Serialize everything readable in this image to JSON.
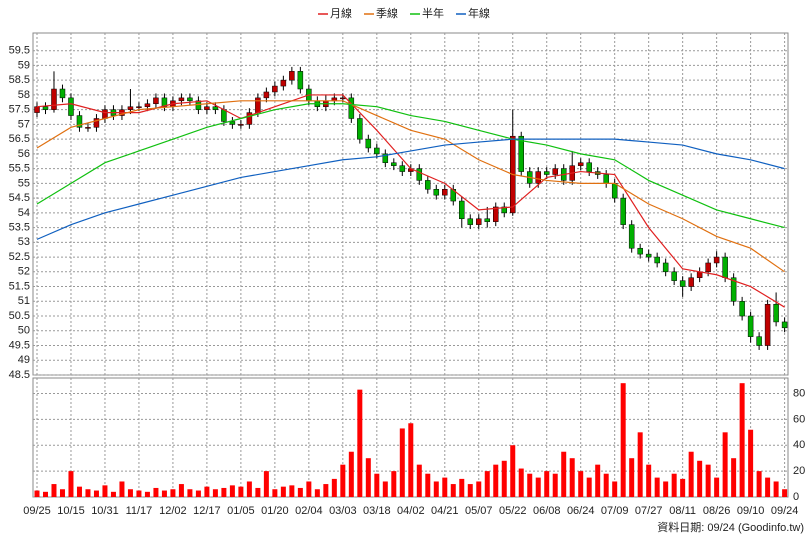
{
  "chart_data": {
    "type": "candlestick",
    "legend": [
      "月線",
      "季線",
      "半年",
      "年線"
    ],
    "footer": "資料日期: 09/24 (Goodinfo.tw)",
    "up_color": "#c00000",
    "down_color": "#00b000",
    "volume_color": "#ff0000",
    "xlim": [
      -0.47,
      88.4
    ],
    "xticks": [
      {
        "value": 0,
        "label": "09/25"
      },
      {
        "value": 4,
        "label": "10/15"
      },
      {
        "value": 8,
        "label": "10/31"
      },
      {
        "value": 12,
        "label": "11/17"
      },
      {
        "value": 16,
        "label": "12/02"
      },
      {
        "value": 20,
        "label": "12/17"
      },
      {
        "value": 24,
        "label": "01/05"
      },
      {
        "value": 28,
        "label": "01/20"
      },
      {
        "value": 32,
        "label": "02/04"
      },
      {
        "value": 36,
        "label": "03/03"
      },
      {
        "value": 40,
        "label": "03/18"
      },
      {
        "value": 44,
        "label": "04/02"
      },
      {
        "value": 48,
        "label": "04/21"
      },
      {
        "value": 52,
        "label": "05/07"
      },
      {
        "value": 56,
        "label": "05/22"
      },
      {
        "value": 60,
        "label": "06/08"
      },
      {
        "value": 64,
        "label": "06/24"
      },
      {
        "value": 68,
        "label": "07/09"
      },
      {
        "value": 72,
        "label": "07/27"
      },
      {
        "value": 76,
        "label": "08/11"
      },
      {
        "value": 80,
        "label": "08/26"
      },
      {
        "value": 84,
        "label": "09/10"
      },
      {
        "value": 88,
        "label": "09/24"
      }
    ],
    "ylim": [
      48.5,
      60.1
    ],
    "yticks": [
      48.5,
      49,
      49.5,
      50,
      50.5,
      51,
      51.5,
      52,
      52.5,
      53,
      53.5,
      54,
      54.5,
      55,
      55.5,
      56,
      56.5,
      57,
      57.5,
      58,
      58.5,
      59,
      59.5
    ],
    "y2lim": [
      0,
      92
    ],
    "y2ticks": [
      0,
      20,
      40,
      60,
      80
    ],
    "grid": true,
    "open": [
      57.4,
      57.6,
      57.5,
      58.2,
      57.9,
      57.3,
      56.9,
      56.9,
      57.2,
      57.5,
      57.3,
      57.5,
      57.6,
      57.6,
      57.7,
      57.9,
      57.6,
      57.8,
      57.9,
      57.8,
      57.5,
      57.6,
      57.5,
      57.1,
      57.0,
      57.0,
      57.4,
      57.9,
      58.1,
      58.3,
      58.5,
      58.8,
      58.2,
      57.8,
      57.6,
      57.8,
      57.9,
      57.9,
      57.2,
      56.5,
      56.2,
      56.0,
      55.7,
      55.6,
      55.4,
      55.5,
      55.1,
      54.8,
      54.6,
      54.8,
      54.4,
      53.8,
      53.6,
      53.8,
      53.7,
      54.2,
      54.0,
      56.6,
      55.4,
      55.0,
      55.4,
      55.3,
      55.5,
      55.1,
      55.6,
      55.7,
      55.4,
      55.3,
      55.0,
      54.5,
      53.6,
      52.8,
      52.6,
      52.5,
      52.3,
      52.0,
      51.7,
      51.5,
      51.8,
      52.0,
      52.3,
      52.5,
      51.8,
      51.0,
      50.5,
      49.8,
      49.5,
      50.9,
      50.3
    ],
    "close": [
      57.6,
      57.5,
      58.2,
      57.9,
      57.3,
      56.9,
      56.9,
      57.2,
      57.5,
      57.3,
      57.5,
      57.6,
      57.6,
      57.7,
      57.9,
      57.6,
      57.8,
      57.9,
      57.8,
      57.5,
      57.6,
      57.5,
      57.1,
      57.0,
      57.0,
      57.4,
      57.9,
      58.1,
      58.3,
      58.5,
      58.8,
      58.2,
      57.8,
      57.6,
      57.8,
      57.9,
      57.9,
      57.2,
      56.5,
      56.2,
      56.0,
      55.7,
      55.6,
      55.4,
      55.5,
      55.1,
      54.8,
      54.6,
      54.8,
      54.4,
      53.8,
      53.6,
      53.8,
      53.7,
      54.2,
      54.0,
      56.6,
      55.4,
      55.0,
      55.4,
      55.3,
      55.5,
      55.1,
      55.6,
      55.7,
      55.4,
      55.3,
      55.0,
      54.5,
      53.6,
      52.8,
      52.6,
      52.5,
      52.3,
      52.0,
      51.7,
      51.5,
      51.8,
      52.0,
      52.3,
      52.5,
      51.8,
      51.0,
      50.5,
      49.8,
      49.5,
      50.9,
      50.3,
      50.1
    ],
    "high": [
      57.75,
      57.75,
      58.8,
      58.35,
      58.05,
      57.45,
      57.05,
      57.35,
      57.65,
      57.65,
      57.65,
      58.2,
      57.75,
      57.85,
      58.05,
      58.05,
      57.95,
      58.05,
      58.05,
      57.95,
      57.75,
      57.75,
      57.65,
      57.25,
      57.15,
      57.55,
      58.05,
      58.25,
      58.45,
      58.65,
      58.95,
      58.95,
      58.35,
      57.95,
      58.0,
      58.05,
      58.05,
      58.05,
      57.35,
      56.65,
      56.35,
      56.15,
      55.85,
      55.75,
      55.65,
      55.65,
      55.25,
      54.95,
      54.95,
      54.95,
      54.55,
      53.95,
      53.95,
      54.2,
      54.35,
      54.35,
      57.5,
      56.75,
      55.55,
      55.55,
      55.55,
      55.65,
      55.65,
      56.1,
      55.85,
      55.85,
      55.55,
      55.45,
      55.15,
      54.65,
      53.75,
      52.95,
      52.75,
      52.65,
      52.45,
      52.15,
      51.85,
      51.95,
      52.15,
      52.45,
      52.7,
      52.65,
      51.95,
      51.15,
      50.65,
      49.95,
      51.05,
      51.3,
      50.45
    ],
    "low": [
      57.25,
      57.35,
      57.4,
      57.75,
      57.15,
      56.75,
      56.75,
      56.75,
      57.05,
      57.15,
      57.15,
      57.35,
      57.45,
      57.45,
      57.55,
      57.45,
      57.45,
      57.65,
      57.65,
      57.35,
      57.35,
      57.35,
      56.95,
      56.85,
      56.85,
      56.85,
      57.25,
      57.75,
      57.95,
      58.15,
      58.35,
      58.05,
      57.65,
      57.45,
      57.45,
      57.65,
      57.75,
      57.05,
      56.35,
      56.05,
      55.85,
      55.55,
      55.45,
      55.25,
      55.25,
      54.95,
      54.65,
      54.45,
      54.45,
      54.25,
      53.5,
      53.45,
      53.45,
      53.5,
      53.55,
      53.85,
      53.9,
      55.25,
      54.85,
      54.85,
      55.15,
      55.15,
      54.95,
      54.95,
      55.45,
      55.25,
      55.15,
      54.85,
      54.35,
      53.45,
      52.65,
      52.45,
      52.35,
      52.15,
      51.85,
      51.55,
      51.15,
      51.35,
      51.65,
      51.85,
      52.15,
      51.65,
      50.85,
      50.35,
      49.6,
      49.35,
      49.35,
      50.15,
      49.95
    ],
    "volume": [
      5,
      4,
      10,
      6,
      20,
      8,
      6,
      5,
      9,
      4,
      12,
      6,
      5,
      4,
      7,
      5,
      6,
      10,
      6,
      5,
      8,
      6,
      7,
      9,
      8,
      12,
      7,
      20,
      6,
      8,
      9,
      7,
      12,
      6,
      10,
      14,
      25,
      35,
      83,
      30,
      18,
      12,
      20,
      53,
      57,
      25,
      18,
      12,
      15,
      10,
      14,
      10,
      12,
      20,
      25,
      28,
      40,
      22,
      18,
      15,
      20,
      18,
      35,
      30,
      20,
      15,
      25,
      18,
      12,
      88,
      30,
      50,
      25,
      15,
      12,
      18,
      14,
      35,
      28,
      25,
      15,
      50,
      30,
      88,
      52,
      20,
      15,
      12,
      6
    ],
    "series": [
      {
        "name": "月線",
        "color": "#e02020",
        "values": [
          57.6,
          57.7,
          57.4,
          57.4,
          57.7,
          57.8,
          57.2,
          57.6,
          58.0,
          58.0,
          56.8,
          55.5,
          55.0,
          54.1,
          54.2,
          55.2,
          55.4,
          55.3,
          53.5,
          52.1,
          51.9,
          51.5,
          50.8
        ]
      },
      {
        "name": "季線",
        "color": "#e07010",
        "values": [
          56.2,
          56.9,
          57.2,
          57.5,
          57.6,
          57.7,
          57.8,
          57.8,
          57.8,
          57.8,
          57.3,
          56.8,
          56.5,
          55.8,
          55.3,
          55.1,
          55.0,
          55.0,
          54.3,
          53.8,
          53.2,
          52.8,
          52.0
        ]
      },
      {
        "name": "半年",
        "color": "#10c010",
        "values": [
          54.3,
          55.0,
          55.7,
          56.1,
          56.5,
          56.9,
          57.2,
          57.5,
          57.7,
          57.7,
          57.6,
          57.3,
          57.1,
          56.8,
          56.5,
          56.3,
          56.0,
          55.8,
          55.1,
          54.6,
          54.1,
          53.8,
          53.5
        ]
      },
      {
        "name": "年線",
        "color": "#1060c0",
        "values": [
          53.1,
          53.6,
          54.0,
          54.3,
          54.6,
          54.9,
          55.2,
          55.4,
          55.6,
          55.8,
          55.9,
          56.1,
          56.3,
          56.4,
          56.5,
          56.5,
          56.5,
          56.5,
          56.4,
          56.3,
          56.0,
          55.8,
          55.5
        ]
      }
    ]
  }
}
